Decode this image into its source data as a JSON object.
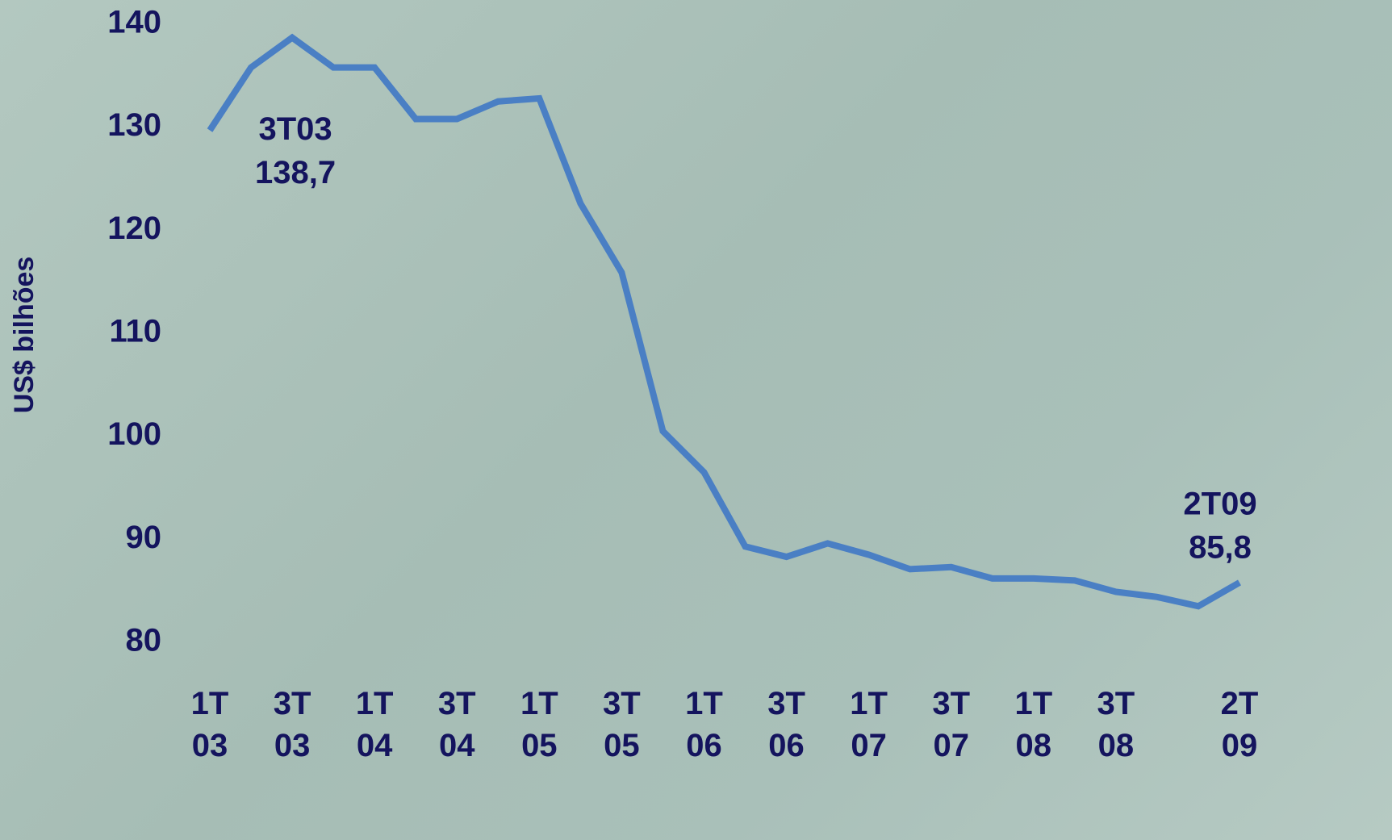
{
  "chart_data": {
    "type": "line",
    "y_label": "US$ bilhões",
    "categories": [
      "1T 03",
      null,
      "3T 03",
      null,
      "1T 04",
      null,
      "3T 04",
      null,
      "1T 05",
      null,
      "3T 05",
      null,
      "1T 06",
      null,
      "3T 06",
      null,
      "1T 07",
      null,
      "3T 07",
      null,
      "1T 08",
      null,
      "3T 08",
      null,
      null,
      "2T 09"
    ],
    "series": [
      {
        "name": "US$ bilhões",
        "color": "#4a7fc4",
        "values": [
          129.7,
          135.8,
          138.7,
          135.8,
          135.8,
          130.8,
          130.8,
          132.5,
          132.8,
          122.6,
          115.9,
          100.5,
          96.5,
          89.3,
          88.3,
          89.6,
          88.5,
          87.1,
          87.3,
          86.2,
          86.2,
          86.0,
          84.9,
          84.4,
          83.5,
          85.8
        ],
        "value_labels": [
          null,
          null,
          "138,7",
          null,
          null,
          null,
          null,
          null,
          null,
          null,
          null,
          null,
          null,
          null,
          null,
          null,
          null,
          null,
          null,
          null,
          null,
          null,
          null,
          null,
          null,
          "85,8"
        ],
        "point_labels": [
          null,
          null,
          "3T03",
          null,
          null,
          null,
          null,
          null,
          null,
          null,
          null,
          null,
          null,
          null,
          null,
          null,
          null,
          null,
          null,
          null,
          null,
          null,
          null,
          null,
          null,
          "2T09"
        ]
      }
    ],
    "ylim": [
      80,
      140
    ],
    "yticks": [
      80,
      90,
      100,
      110,
      120,
      130,
      140
    ],
    "grid": false
  }
}
